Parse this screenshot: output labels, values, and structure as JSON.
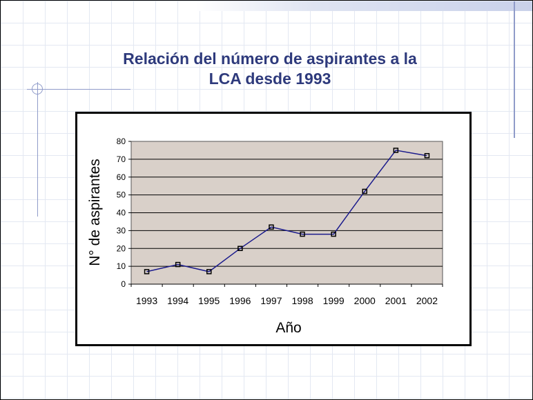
{
  "slide": {
    "title_line1": "Relación del número de aspirantes a la",
    "title_line2": "LCA desde 1993"
  },
  "colors": {
    "title": "#2e3a7c",
    "plot_area": "#d9d0c9",
    "line": "#1a1a8c",
    "marker": "#000000"
  },
  "chart_data": {
    "type": "line",
    "title": "Relación del número de aspirantes a la LCA desde 1993",
    "xlabel": "Año",
    "ylabel": "N° de aspirantes",
    "categories": [
      "1993",
      "1994",
      "1995",
      "1996",
      "1997",
      "1998",
      "1999",
      "2000",
      "2001",
      "2002"
    ],
    "values": [
      7,
      11,
      7,
      20,
      32,
      28,
      28,
      52,
      75,
      72
    ],
    "ylim": [
      0,
      80
    ],
    "yticks": [
      0,
      10,
      20,
      30,
      40,
      50,
      60,
      70,
      80
    ],
    "grid": "horizontal",
    "legend": "none"
  }
}
